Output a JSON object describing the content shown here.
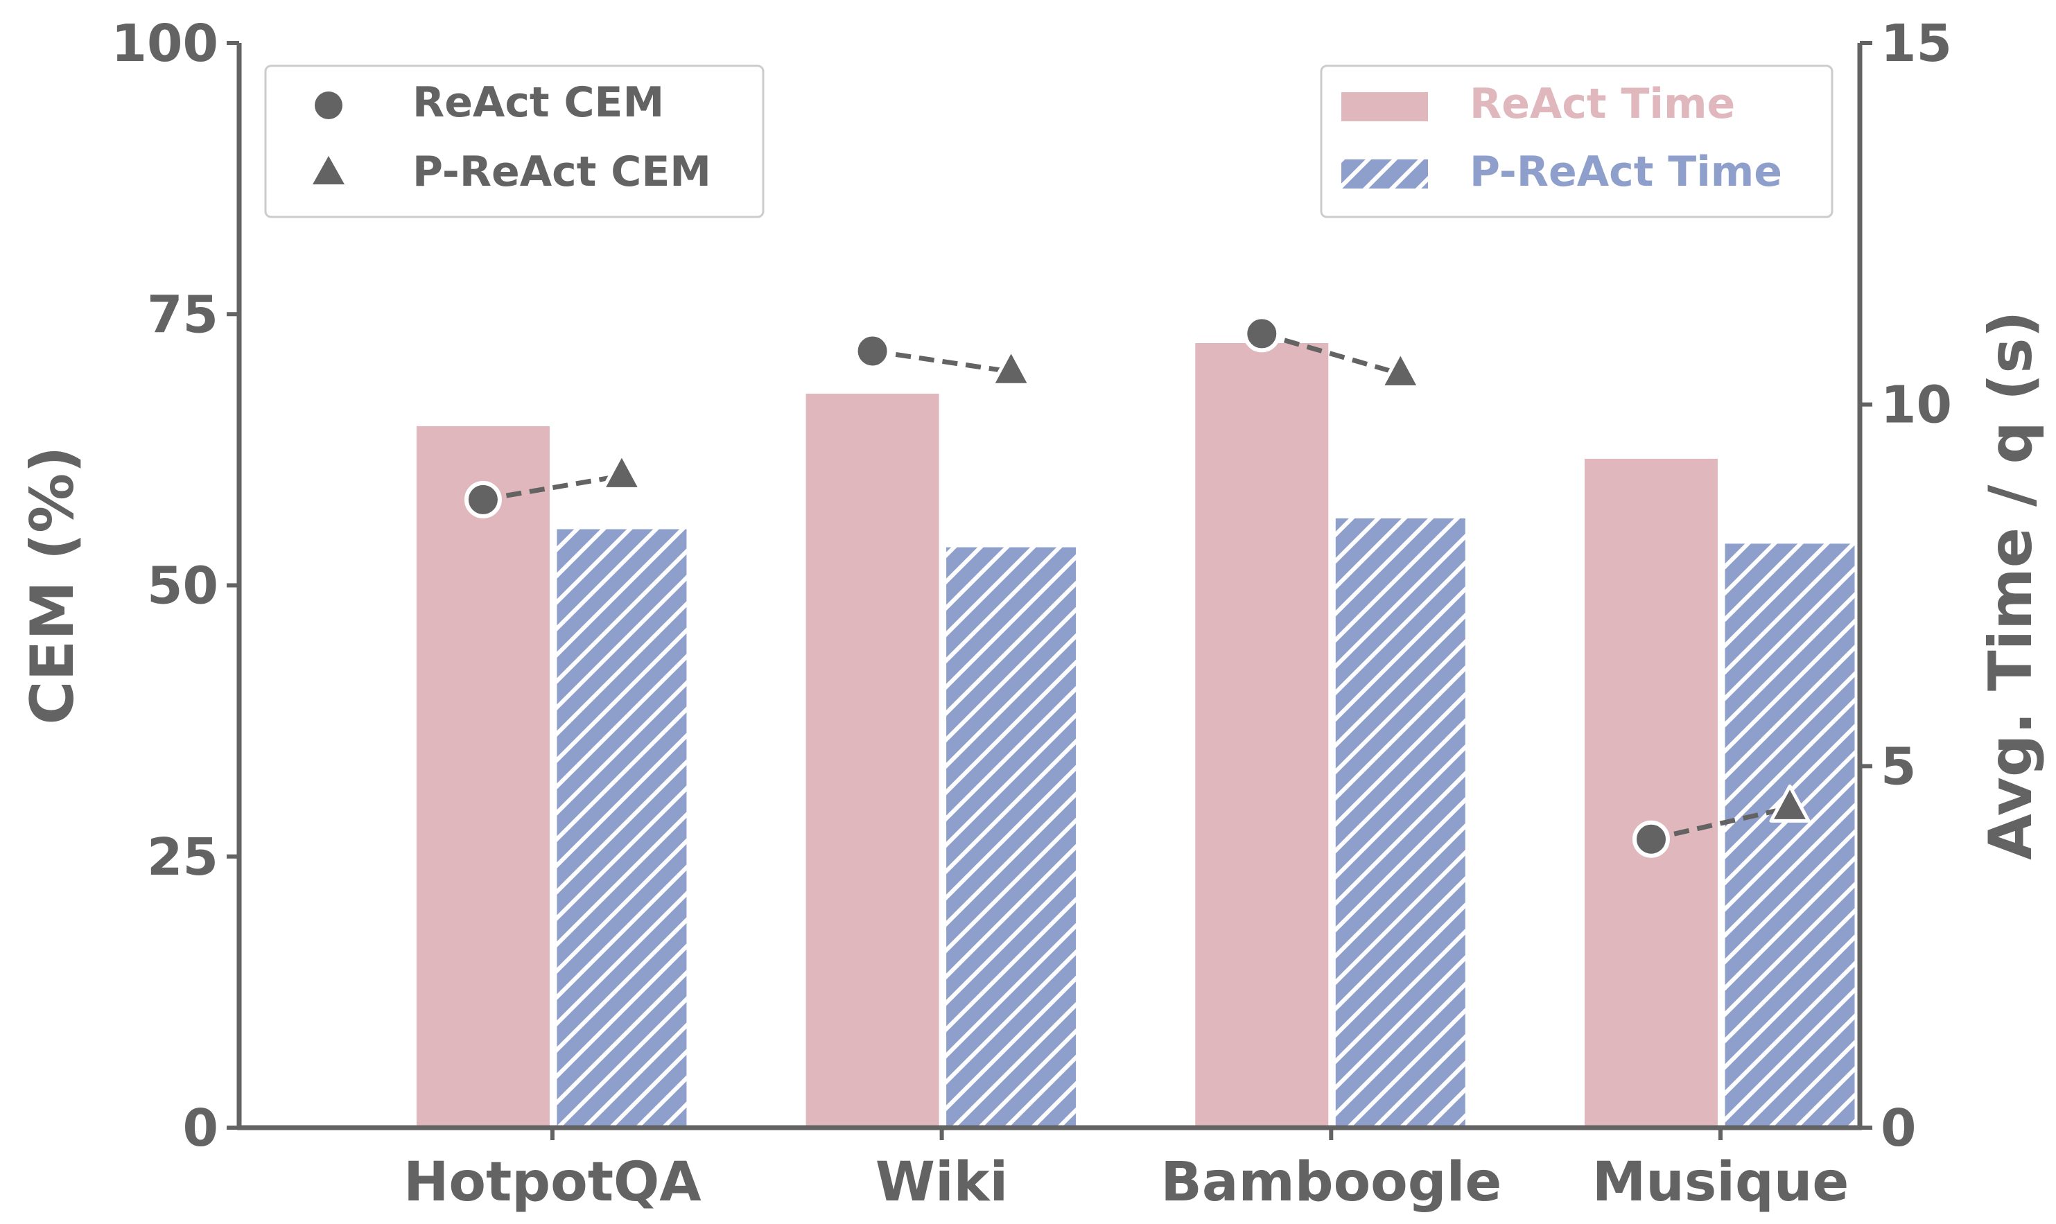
{
  "chart_data": {
    "type": "bar",
    "categories": [
      "HotpotQA",
      "Wiki",
      "Bamboogle",
      "Musique"
    ],
    "left_axis": {
      "label": "CEM (%)",
      "ylim": [
        0,
        100
      ],
      "ticks": [
        0,
        25,
        50,
        75,
        100
      ]
    },
    "right_axis": {
      "label": "Avg. Time / q (s)",
      "ylim": [
        0,
        15
      ],
      "ticks": [
        0,
        5,
        10,
        15
      ]
    },
    "bar_series": [
      {
        "name": "ReAct Time",
        "axis": "right",
        "values": [
          9.7,
          10.15,
          10.85,
          9.25
        ],
        "color": "#e0b7bd",
        "hatch": false
      },
      {
        "name": "P-ReAct Time",
        "axis": "right",
        "values": [
          8.3,
          8.05,
          8.45,
          8.1
        ],
        "color": "#8e9fcb",
        "hatch": true
      }
    ],
    "point_series": [
      {
        "name": "ReAct CEM",
        "axis": "left",
        "marker": "circle",
        "values": [
          57.9,
          71.6,
          73.2,
          26.6
        ]
      },
      {
        "name": "P-ReAct CEM",
        "axis": "left",
        "marker": "triangle",
        "values": [
          60.1,
          69.7,
          69.5,
          29.5
        ]
      }
    ],
    "marker_color": "#636363",
    "axis_color": "#636363",
    "legend_left_placement": "top-left",
    "legend_right_placement": "top-right",
    "grid": false
  }
}
